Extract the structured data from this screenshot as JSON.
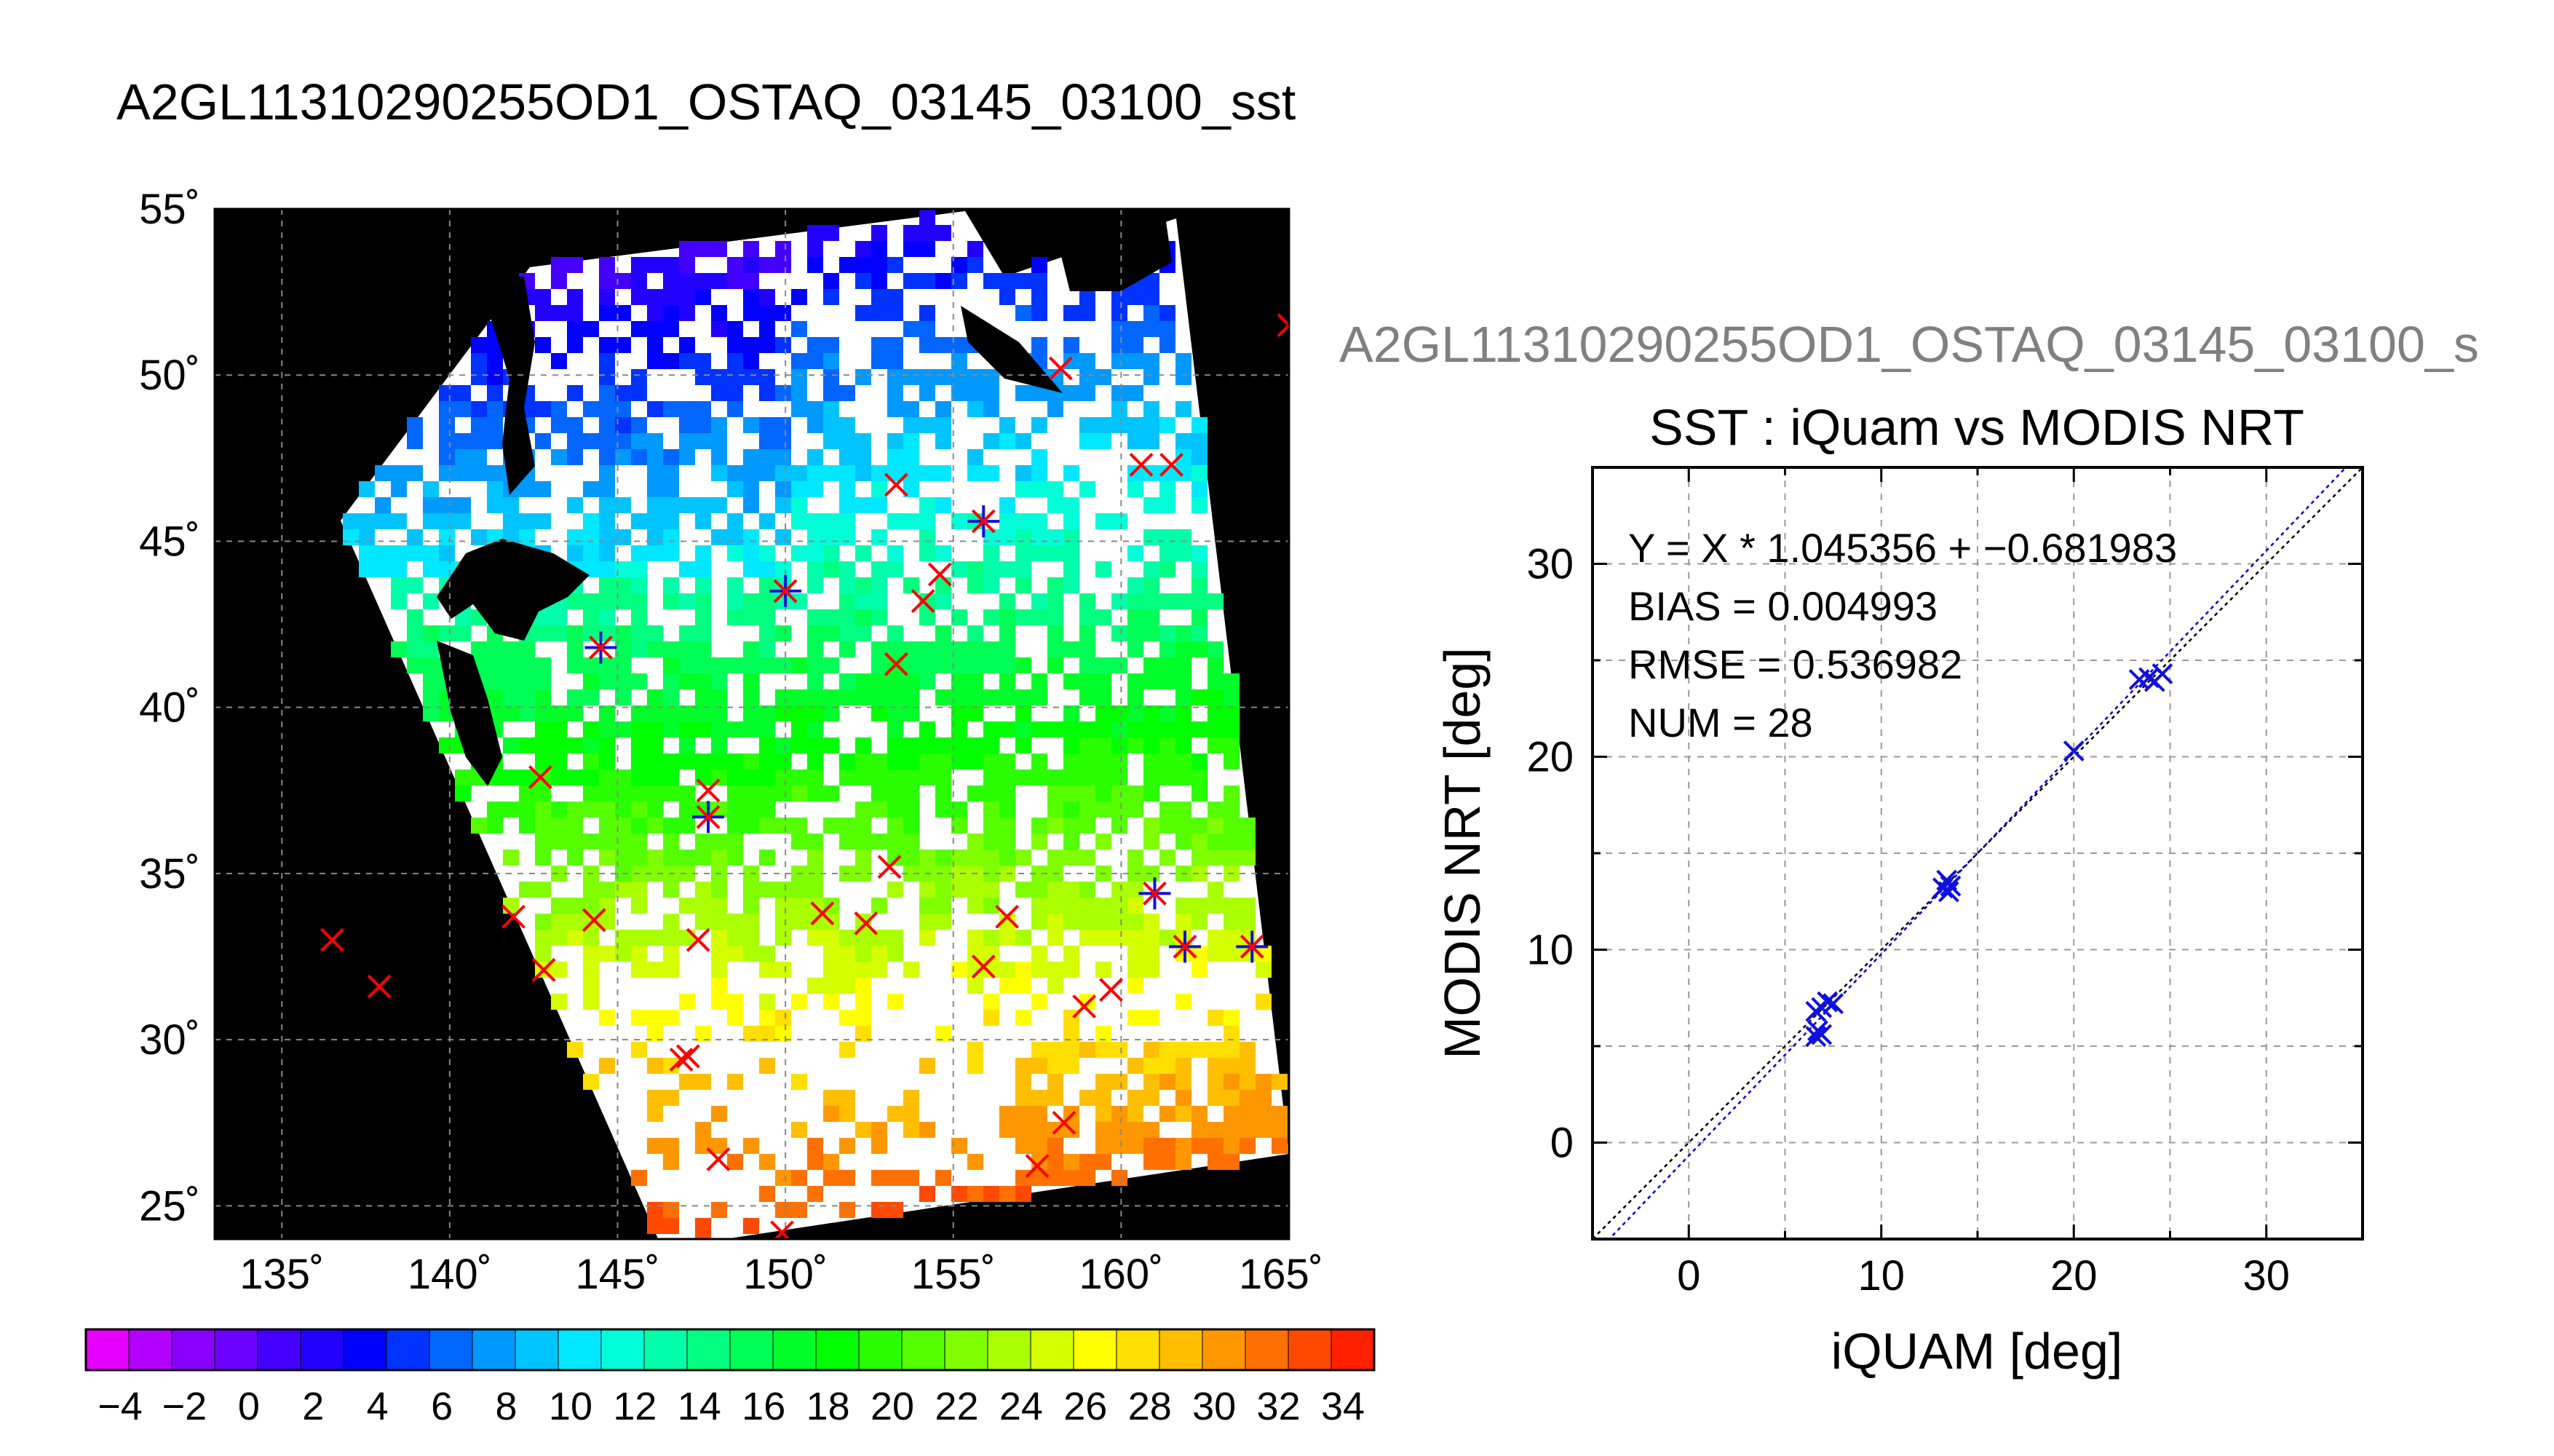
{
  "figure": {
    "title": "A2GL11310290255OD1_OSTAQ_03145_03100_sst",
    "subtitle": "A2GL11310290255OD1_OSTAQ_03145_03100_s",
    "colors": {
      "title": "#000000",
      "subtitle": "#808080",
      "land": "#000000",
      "marker_red": "#ff0000",
      "marker_blue": "#1010e0"
    }
  },
  "map": {
    "lat_ticks": [
      "55˚",
      "50˚",
      "45˚",
      "40˚",
      "35˚",
      "30˚",
      "25˚"
    ],
    "lon_ticks": [
      "135˚",
      "140˚",
      "145˚",
      "150˚",
      "155˚",
      "160˚",
      "165˚"
    ],
    "colorbar": {
      "tick_labels": [
        "−4",
        "−2",
        "0",
        "2",
        "4",
        "6",
        "8",
        "10",
        "12",
        "14",
        "16",
        "18",
        "20",
        "22",
        "24",
        "26",
        "28",
        "30",
        "32",
        "34"
      ],
      "colors": [
        "#e600ff",
        "#b400ff",
        "#8a00ff",
        "#6a00ff",
        "#4400ff",
        "#2200ff",
        "#0000ff",
        "#0033ff",
        "#0066ff",
        "#0099ff",
        "#00c4ff",
        "#00e8ff",
        "#00ffd8",
        "#00ffaa",
        "#00ff80",
        "#00ff55",
        "#00ff2a",
        "#00ff00",
        "#2aff00",
        "#55ff00",
        "#80ff00",
        "#aaff00",
        "#d4ff00",
        "#ffff00",
        "#ffdf00",
        "#ffbf00",
        "#ff9800",
        "#ff7000",
        "#ff4800",
        "#ff2000"
      ]
    },
    "markers": [
      {
        "lon": 136.5,
        "lat": 33.0,
        "kind": "red"
      },
      {
        "lon": 137.9,
        "lat": 31.6,
        "kind": "red"
      },
      {
        "lon": 141.9,
        "lat": 33.7,
        "kind": "red"
      },
      {
        "lon": 142.8,
        "lat": 32.1,
        "kind": "red"
      },
      {
        "lon": 144.3,
        "lat": 33.6,
        "kind": "red"
      },
      {
        "lon": 147.4,
        "lat": 33.0,
        "kind": "red"
      },
      {
        "lon": 146.9,
        "lat": 29.4,
        "kind": "red"
      },
      {
        "lon": 147.1,
        "lat": 29.5,
        "kind": "red"
      },
      {
        "lon": 148.0,
        "lat": 26.4,
        "kind": "red"
      },
      {
        "lon": 149.9,
        "lat": 24.2,
        "kind": "red"
      },
      {
        "lon": 151.1,
        "lat": 33.8,
        "kind": "red"
      },
      {
        "lon": 152.4,
        "lat": 33.5,
        "kind": "red"
      },
      {
        "lon": 153.1,
        "lat": 35.2,
        "kind": "red"
      },
      {
        "lon": 156.6,
        "lat": 33.7,
        "kind": "red"
      },
      {
        "lon": 155.9,
        "lat": 32.2,
        "kind": "red"
      },
      {
        "lon": 158.9,
        "lat": 31.0,
        "kind": "red"
      },
      {
        "lon": 159.7,
        "lat": 31.5,
        "kind": "red"
      },
      {
        "lon": 158.3,
        "lat": 27.5,
        "kind": "red"
      },
      {
        "lon": 157.5,
        "lat": 26.2,
        "kind": "red"
      },
      {
        "lon": 142.7,
        "lat": 37.9,
        "kind": "red"
      },
      {
        "lon": 147.7,
        "lat": 37.5,
        "kind": "red"
      },
      {
        "lon": 153.3,
        "lat": 41.3,
        "kind": "red"
      },
      {
        "lon": 154.1,
        "lat": 43.2,
        "kind": "red"
      },
      {
        "lon": 154.6,
        "lat": 44.0,
        "kind": "red"
      },
      {
        "lon": 153.3,
        "lat": 46.7,
        "kind": "red"
      },
      {
        "lon": 160.6,
        "lat": 47.3,
        "kind": "red"
      },
      {
        "lon": 161.5,
        "lat": 47.3,
        "kind": "red"
      },
      {
        "lon": 158.2,
        "lat": 50.2,
        "kind": "red"
      },
      {
        "lon": 165.0,
        "lat": 51.5,
        "kind": "red"
      },
      {
        "lon": 144.5,
        "lat": 41.8,
        "kind": "both"
      },
      {
        "lon": 150.0,
        "lat": 43.5,
        "kind": "both"
      },
      {
        "lon": 155.9,
        "lat": 45.6,
        "kind": "both"
      },
      {
        "lon": 147.7,
        "lat": 36.7,
        "kind": "both"
      },
      {
        "lon": 161.0,
        "lat": 34.4,
        "kind": "both"
      },
      {
        "lon": 161.9,
        "lat": 32.8,
        "kind": "both"
      },
      {
        "lon": 163.9,
        "lat": 32.8,
        "kind": "both"
      }
    ]
  },
  "chart_data": {
    "type": "scatter",
    "title": "SST : iQuam vs MODIS NRT",
    "xlabel": "iQUAM [deg]",
    "ylabel": "MODIS NRT [deg]",
    "xlim": [
      -5,
      35
    ],
    "ylim": [
      -5,
      35
    ],
    "x_ticks": [
      0,
      10,
      20,
      30
    ],
    "y_ticks": [
      0,
      10,
      20,
      30
    ],
    "grid": true,
    "annotations": [
      "Y = X * 1.045356 + −0.681983",
      "BIAS = 0.004993",
      "RMSE = 0.536982",
      "NUM = 28"
    ],
    "regression": {
      "slope": 1.045356,
      "intercept": -0.681983,
      "color": "#0000dd"
    },
    "identity_line_color": "#000000",
    "marker_color": "#1010e0",
    "points": [
      {
        "x": 6.6,
        "y": 5.5
      },
      {
        "x": 6.7,
        "y": 5.8
      },
      {
        "x": 6.9,
        "y": 5.6
      },
      {
        "x": 6.6,
        "y": 6.8
      },
      {
        "x": 6.9,
        "y": 7.0
      },
      {
        "x": 7.2,
        "y": 7.3
      },
      {
        "x": 7.5,
        "y": 7.2
      },
      {
        "x": 13.2,
        "y": 13.2
      },
      {
        "x": 13.4,
        "y": 13.6
      },
      {
        "x": 13.6,
        "y": 13.3
      },
      {
        "x": 13.5,
        "y": 13.0
      },
      {
        "x": 20.0,
        "y": 20.3
      },
      {
        "x": 23.4,
        "y": 24.0
      },
      {
        "x": 23.9,
        "y": 24.1
      },
      {
        "x": 24.2,
        "y": 23.9
      },
      {
        "x": 24.6,
        "y": 24.3
      }
    ]
  }
}
